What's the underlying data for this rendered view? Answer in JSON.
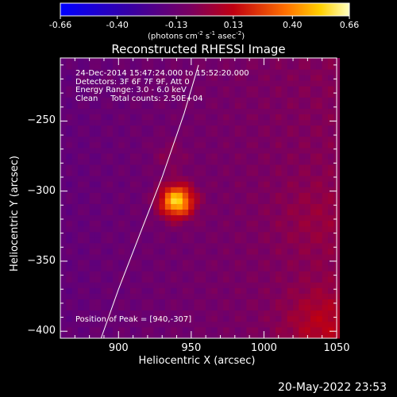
{
  "chart_data": {
    "type": "heatmap",
    "title": "Reconstructed RHESSI Image",
    "xlabel": "Heliocentric X (arcsec)",
    "ylabel": "Heliocentric Y (arcsec)",
    "xlim": [
      860,
      1050
    ],
    "ylim": [
      -405,
      -205
    ],
    "x_ticks": [
      900,
      950,
      1000,
      1050
    ],
    "y_ticks": [
      -250,
      -300,
      -350,
      -400
    ],
    "colorbar": {
      "min": -0.66,
      "max": 0.66,
      "ticks": [
        "-0.66",
        "-0.40",
        "-0.13",
        "0.13",
        "0.40",
        "0.66"
      ],
      "unit_base": "(photons cm",
      "unit_exp1": "-2",
      "unit_mid": " s",
      "unit_exp2": "-1",
      "unit_mid2": " asec",
      "unit_exp3": "-2",
      "unit_end": ")"
    },
    "info_lines": [
      "24-Dec-2014 15:47:24.000 to 15:52:20.000",
      "Detectors: 3F 6F 7F 9F, Att 0",
      "Energy Range: 3.0 - 6.0 keV",
      "Clean     Total counts: 2.50E+04"
    ],
    "peak_label": "Position of Peak = [940,-307]",
    "peak": {
      "x": 940,
      "y": -307,
      "value": 0.66
    },
    "limb": [
      [
        888,
        -405
      ],
      [
        900,
        -370
      ],
      [
        915,
        -330
      ],
      [
        930,
        -290
      ],
      [
        945,
        -245
      ],
      [
        955,
        -210
      ]
    ],
    "sources": [
      {
        "x": 940,
        "y": -307,
        "amp": 0.66,
        "sigma": 8
      },
      {
        "x": 935,
        "y": -275,
        "amp": 0.08,
        "sigma": 8
      },
      {
        "x": 1040,
        "y": -395,
        "amp": 0.15,
        "sigma": 18
      },
      {
        "x": 1035,
        "y": -320,
        "amp": 0.06,
        "sigma": 20
      }
    ]
  },
  "datestamp": "20-May-2022 23:53"
}
